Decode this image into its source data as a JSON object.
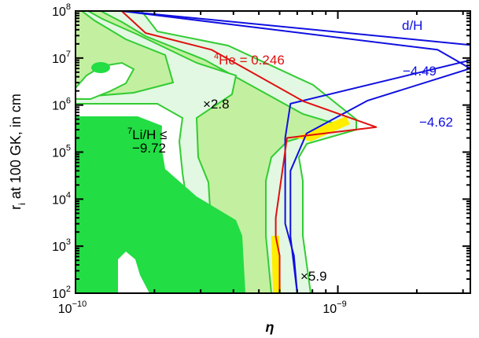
{
  "chart_data": {
    "type": "contour",
    "xlabel_symbol": "η",
    "ylabel_main": "r",
    "ylabel_sub": "i",
    "ylabel_rest": " at 100 GK, in cm",
    "x_scale": "log",
    "y_scale": "log",
    "xlim": [
      1e-10,
      3.2e-09
    ],
    "ylim": [
      100,
      100000000
    ],
    "x_ticks": [
      {
        "value": 1e-10,
        "base": "10",
        "exp": "−10"
      },
      {
        "value": 1e-09,
        "base": "10",
        "exp": "−9"
      }
    ],
    "y_ticks": [
      {
        "value": 100,
        "base": "10",
        "exp": "2"
      },
      {
        "value": 1000,
        "base": "10",
        "exp": "3"
      },
      {
        "value": 10000,
        "base": "10",
        "exp": "4"
      },
      {
        "value": 100000,
        "base": "10",
        "exp": "5"
      },
      {
        "value": 1000000,
        "base": "10",
        "exp": "6"
      },
      {
        "value": 10000000,
        "base": "10",
        "exp": "7"
      },
      {
        "value": 100000000,
        "base": "10",
        "exp": "8"
      }
    ],
    "colors": {
      "deuterium": "#1010e0",
      "helium": "#e01010",
      "lithium_line": "#33cc33",
      "lithium_fill_dark": "#22dd44",
      "lithium_fill_medium": "#c2f0a0",
      "lithium_fill_light": "#e2f8e2",
      "overlap": "#ffee00"
    },
    "annotations": {
      "dh_label": "d/H",
      "dh_value_1": "−4.49",
      "dh_value_2": "−4.62",
      "he_sup": "4",
      "he_text": "He = 0.246",
      "li_sup": "7",
      "li_text": "Li/H ≤",
      "li_value": "−9.72",
      "factor_1": "×2.8",
      "factor_2": "×5.9"
    },
    "series": [
      {
        "name": "d/H = −4.49",
        "color": "#1010e0",
        "x": [
          1.5e-10,
          3.2e-09,
          3.2e-09,
          6.6e-10,
          6.3e-10,
          6.3e-10,
          6.8e-10,
          7e-10
        ],
        "y": [
          100000000,
          19000000,
          9000000,
          1070000,
          200000,
          3000,
          630,
          100
        ]
      },
      {
        "name": "d/H = −4.62",
        "color": "#1010e0",
        "x": [
          1.5e-10,
          2.4e-09,
          3.2e-09,
          1.3e-09,
          7.6e-10,
          6.6e-10,
          6.6e-10,
          7e-10
        ],
        "y": [
          100000000,
          15000000,
          6000000,
          1250000,
          250000,
          40000,
          1600,
          100
        ]
      },
      {
        "name": "4He = 0.246",
        "color": "#e01010",
        "x": [
          1.5e-10,
          1.85e-10,
          3.3e-10,
          7.4e-10,
          1.4e-09,
          6.4e-10,
          5.8e-10,
          5.8e-10,
          6e-10,
          6e-10
        ],
        "y": [
          100000000,
          34000000,
          15000000,
          1200000,
          340000,
          200000,
          4000,
          1600,
          630,
          100
        ]
      }
    ]
  }
}
